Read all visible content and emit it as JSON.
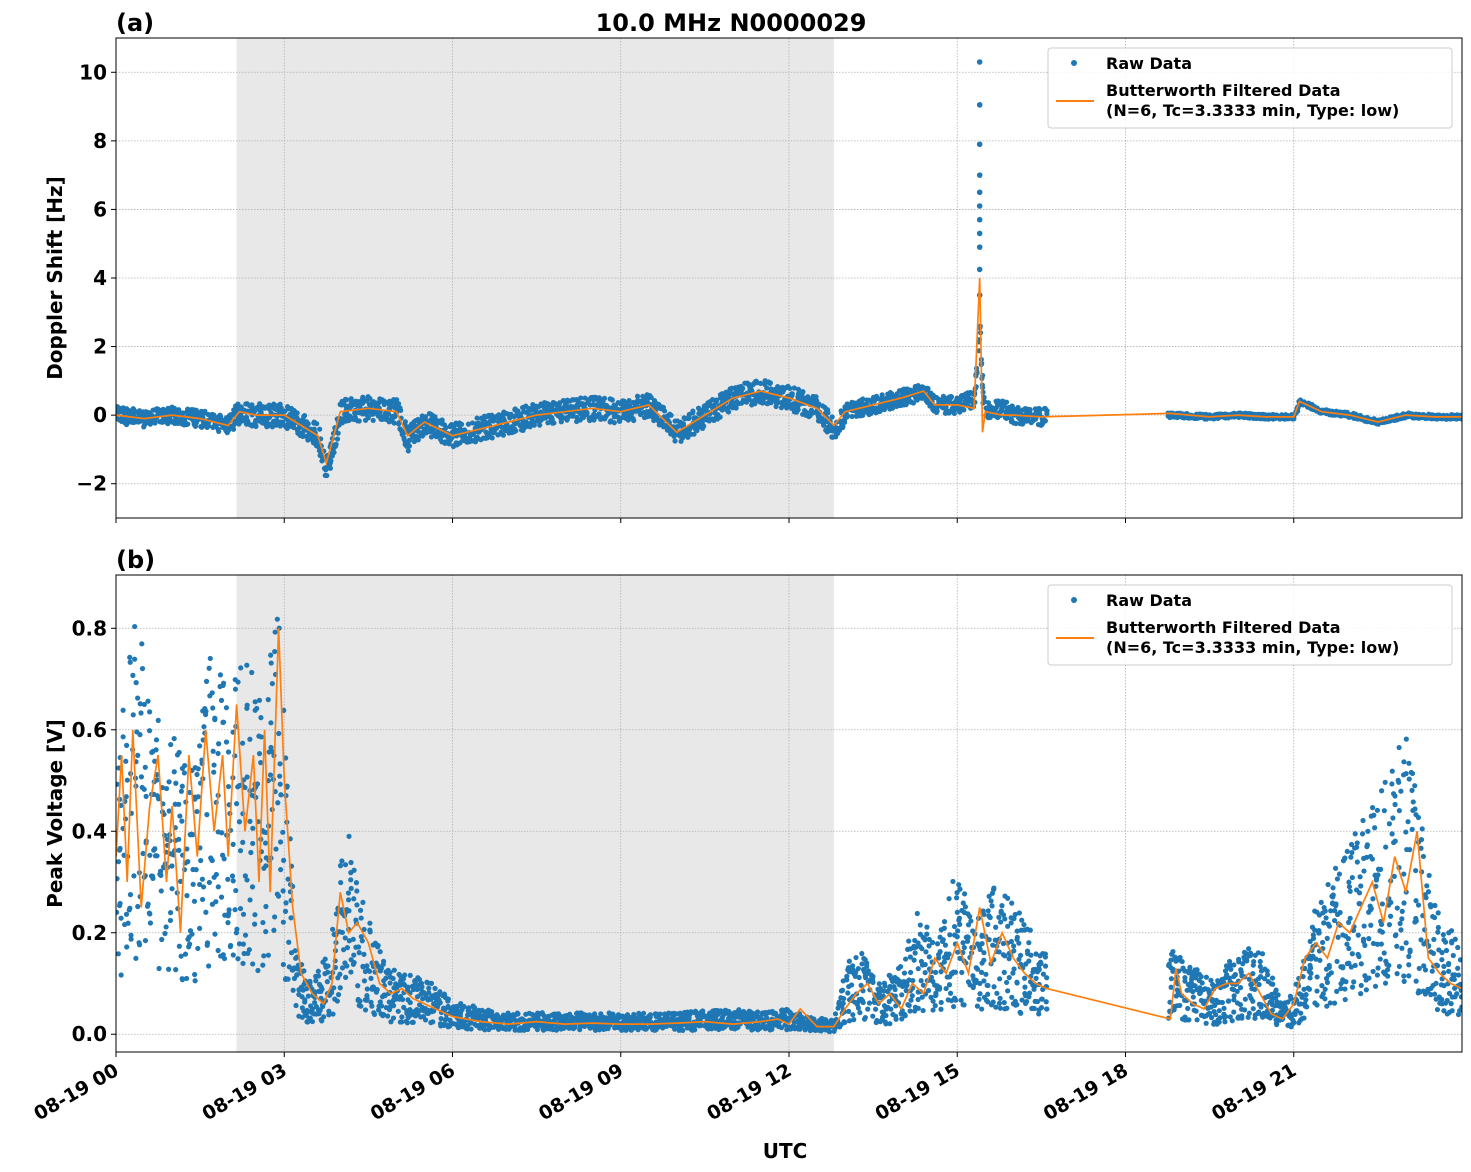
{
  "chart_data": [
    {
      "panel_label": "(a)",
      "title": "10.0 MHz N0000029",
      "type": "scatter+line",
      "ylabel": "Doppler Shift [Hz]",
      "xlabel": "",
      "xlim_hours": [
        0,
        24
      ],
      "ylim": [
        -3,
        11
      ],
      "yticks": [
        -2,
        0,
        2,
        4,
        6,
        8,
        10
      ],
      "ytick_labels": [
        "−2",
        "0",
        "2",
        "4",
        "6",
        "8",
        "10"
      ],
      "grid": true,
      "legend_position": "top-right",
      "night_shading_hours": [
        2.15,
        12.8
      ],
      "series": [
        {
          "name": "Raw Data",
          "kind": "scatter",
          "color": "#1f77b4",
          "x": [
            0,
            0.5,
            1,
            1.5,
            2,
            2.2,
            2.5,
            3,
            3.3,
            3.6,
            3.75,
            4,
            4.5,
            5,
            5.2,
            5.5,
            6,
            6.5,
            7,
            7.5,
            8,
            8.5,
            9,
            9.5,
            10,
            10.5,
            11,
            11.5,
            12,
            12.5,
            12.8,
            13,
            13.5,
            14,
            14.4,
            14.6,
            15,
            15.3,
            15.4,
            15.45,
            15.5,
            15.8,
            16,
            16.5,
            18.8,
            19.5,
            20,
            20.5,
            21,
            21.1,
            21.5,
            22,
            22.5,
            23,
            23.5,
            24
          ],
          "y": [
            0,
            -0.1,
            0,
            -0.1,
            -0.3,
            0.1,
            0,
            0,
            -0.3,
            -0.6,
            -1.6,
            0.1,
            0.2,
            0.1,
            -0.7,
            -0.2,
            -0.6,
            -0.4,
            -0.2,
            0,
            0.1,
            0.2,
            0.1,
            0.3,
            -0.5,
            0,
            0.5,
            0.7,
            0.5,
            0.2,
            -0.4,
            0.1,
            0.3,
            0.5,
            0.7,
            0.3,
            0.3,
            0.5,
            2.5,
            0.6,
            0.1,
            0.2,
            0,
            -0.05,
            0,
            -0.05,
            0,
            -0.05,
            -0.05,
            0.4,
            0.1,
            0,
            -0.2,
            0,
            -0.05,
            -0.05
          ]
        },
        {
          "name": "Butterworth Filtered Data\n(N=6, Tc=3.3333 min, Type: low)",
          "kind": "line",
          "color": "#ff7f0e",
          "x": [
            0,
            0.5,
            1,
            1.5,
            2,
            2.2,
            2.5,
            3,
            3.3,
            3.6,
            3.75,
            4,
            4.5,
            5,
            5.2,
            5.5,
            6,
            6.5,
            7,
            7.5,
            8,
            8.5,
            9,
            9.5,
            10,
            10.5,
            11,
            11.5,
            12,
            12.5,
            12.8,
            13,
            13.5,
            14,
            14.4,
            14.6,
            15,
            15.3,
            15.4,
            15.45,
            15.5,
            15.8,
            16,
            16.5,
            18.8,
            19.5,
            20,
            20.5,
            21,
            21.1,
            21.5,
            22,
            22.5,
            23,
            23.5,
            24
          ],
          "y": [
            0,
            -0.1,
            0,
            -0.1,
            -0.3,
            0.1,
            0,
            0,
            -0.3,
            -0.6,
            -1.4,
            0.1,
            0.2,
            0.1,
            -0.6,
            -0.2,
            -0.6,
            -0.4,
            -0.2,
            0,
            0.1,
            0.2,
            0.1,
            0.3,
            -0.5,
            0,
            0.5,
            0.7,
            0.5,
            0.2,
            -0.3,
            0.1,
            0.3,
            0.5,
            0.7,
            0.3,
            0.3,
            0.2,
            4.0,
            -0.5,
            0.1,
            0,
            0,
            -0.05,
            0.05,
            -0.05,
            0,
            -0.05,
            -0.05,
            0.4,
            0.1,
            0,
            -0.2,
            0,
            -0.05,
            -0.05
          ]
        }
      ],
      "spike_points_y": [
        10.3,
        9.05,
        7.9,
        7.0,
        6.5,
        6.1,
        5.7,
        5.3,
        4.9,
        4.25,
        3.5
      ]
    },
    {
      "panel_label": "(b)",
      "title": "",
      "type": "scatter+line",
      "ylabel": "Peak Voltage [V]",
      "xlabel": "UTC",
      "xlim_hours": [
        0,
        24
      ],
      "ylim": [
        -0.035,
        0.905
      ],
      "yticks": [
        0,
        0.2,
        0.4,
        0.6,
        0.8
      ],
      "ytick_labels": [
        "0.0",
        "0.2",
        "0.4",
        "0.6",
        "0.8"
      ],
      "xticks_hours": [
        0,
        3,
        6,
        9,
        12,
        15,
        18,
        21
      ],
      "xtick_labels": [
        "08-19 00",
        "08-19 03",
        "08-19 06",
        "08-19 09",
        "08-19 12",
        "08-19 15",
        "08-19 18",
        "08-19 21"
      ],
      "grid": true,
      "legend_position": "top-right",
      "night_shading_hours": [
        2.15,
        12.8
      ],
      "series": [
        {
          "name": "Raw Data",
          "kind": "scatter",
          "color": "#1f77b4",
          "x": [
            0,
            0.3,
            0.6,
            1,
            1.3,
            1.6,
            2,
            2.3,
            2.6,
            2.9,
            3.2,
            3.5,
            3.8,
            4.1,
            4.4,
            4.8,
            5.2,
            5.6,
            6,
            6.5,
            7,
            8,
            9,
            10,
            11,
            11.5,
            12,
            12.3,
            12.6,
            12.8,
            13,
            13.3,
            13.6,
            14,
            14.3,
            14.6,
            15,
            15.3,
            15.6,
            16,
            16.3,
            16.5,
            18.8,
            19.2,
            19.6,
            20,
            20.4,
            20.8,
            21,
            21.4,
            21.8,
            22.2,
            22.6,
            23,
            23.5,
            24
          ],
          "y": [
            0.3,
            0.5,
            0.4,
            0.35,
            0.3,
            0.45,
            0.4,
            0.45,
            0.4,
            0.5,
            0.1,
            0.06,
            0.1,
            0.25,
            0.15,
            0.08,
            0.07,
            0.06,
            0.04,
            0.03,
            0.025,
            0.025,
            0.025,
            0.025,
            0.03,
            0.025,
            0.03,
            0.02,
            0.02,
            0.015,
            0.08,
            0.1,
            0.06,
            0.08,
            0.15,
            0.1,
            0.2,
            0.12,
            0.18,
            0.15,
            0.12,
            0.1,
            0.1,
            0.08,
            0.06,
            0.1,
            0.1,
            0.04,
            0.05,
            0.15,
            0.2,
            0.25,
            0.3,
            0.35,
            0.15,
            0.1
          ]
        },
        {
          "name": "Butterworth Filtered Data\n(N=6, Tc=3.3333 min, Type: low)",
          "kind": "line",
          "color": "#ff7f0e",
          "x": [
            0,
            0.1,
            0.2,
            0.3,
            0.45,
            0.6,
            0.75,
            0.9,
            1,
            1.15,
            1.3,
            1.45,
            1.6,
            1.75,
            1.9,
            2,
            2.15,
            2.3,
            2.45,
            2.55,
            2.65,
            2.75,
            2.9,
            3,
            3.15,
            3.3,
            3.5,
            3.7,
            3.85,
            4,
            4.15,
            4.3,
            4.5,
            4.7,
            4.9,
            5.1,
            5.3,
            5.5,
            5.7,
            6,
            6.5,
            7,
            7.5,
            8,
            8.5,
            9,
            9.5,
            10,
            10.5,
            11,
            11.5,
            11.8,
            12,
            12.2,
            12.5,
            12.8,
            13,
            13.2,
            13.4,
            13.6,
            13.8,
            14,
            14.2,
            14.4,
            14.6,
            14.8,
            15,
            15.2,
            15.4,
            15.6,
            15.8,
            16,
            16.2,
            16.4,
            16.6,
            18.8,
            18.9,
            19.0,
            19.2,
            19.4,
            19.6,
            19.8,
            20,
            20.2,
            20.4,
            20.6,
            20.8,
            21,
            21.2,
            21.4,
            21.6,
            21.8,
            22,
            22.2,
            22.4,
            22.6,
            22.8,
            23,
            23.2,
            23.4,
            23.6,
            23.8,
            24
          ],
          "y": [
            0.35,
            0.55,
            0.3,
            0.6,
            0.25,
            0.45,
            0.55,
            0.3,
            0.45,
            0.2,
            0.55,
            0.35,
            0.6,
            0.4,
            0.55,
            0.35,
            0.65,
            0.4,
            0.55,
            0.3,
            0.6,
            0.28,
            0.8,
            0.5,
            0.25,
            0.12,
            0.08,
            0.06,
            0.1,
            0.28,
            0.2,
            0.22,
            0.18,
            0.1,
            0.08,
            0.09,
            0.07,
            0.06,
            0.05,
            0.035,
            0.025,
            0.02,
            0.025,
            0.02,
            0.022,
            0.02,
            0.02,
            0.022,
            0.025,
            0.02,
            0.025,
            0.03,
            0.02,
            0.05,
            0.015,
            0.015,
            0.05,
            0.08,
            0.1,
            0.06,
            0.08,
            0.05,
            0.1,
            0.08,
            0.15,
            0.12,
            0.18,
            0.12,
            0.25,
            0.14,
            0.2,
            0.15,
            0.12,
            0.1,
            0.09,
            0.03,
            0.13,
            0.08,
            0.06,
            0.05,
            0.09,
            0.1,
            0.1,
            0.12,
            0.08,
            0.04,
            0.03,
            0.06,
            0.15,
            0.18,
            0.15,
            0.22,
            0.2,
            0.25,
            0.3,
            0.22,
            0.35,
            0.28,
            0.4,
            0.15,
            0.12,
            0.1,
            0.09
          ]
        }
      ]
    }
  ]
}
